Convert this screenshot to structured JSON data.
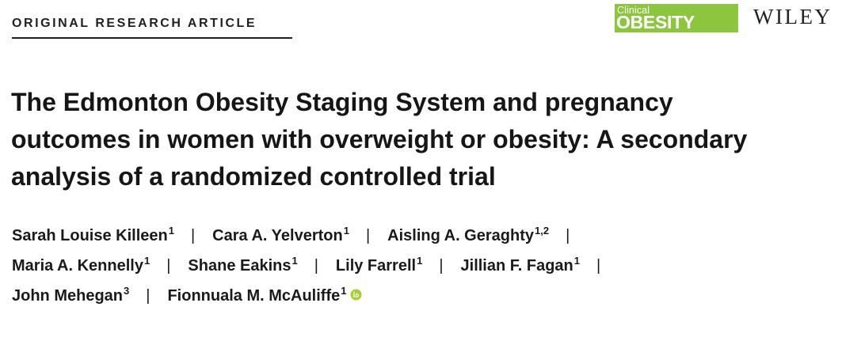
{
  "header": {
    "article_type": "ORIGINAL RESEARCH ARTICLE",
    "journal_logo": {
      "line1": "Clinical",
      "line2": "OBESITY",
      "color": "#8cc63f"
    },
    "publisher": "WILEY"
  },
  "title_lines": [
    "The Edmonton Obesity Staging System and pregnancy",
    "outcomes in women with overweight or obesity: A secondary",
    "analysis of a randomized controlled trial"
  ],
  "separator": "|",
  "authors": [
    {
      "name": "Sarah Louise Killeen",
      "affiliation": "1"
    },
    {
      "name": "Cara A. Yelverton",
      "affiliation": "1"
    },
    {
      "name": "Aisling A. Geraghty",
      "affiliation": "1,2"
    },
    {
      "name": "Maria A. Kennelly",
      "affiliation": "1"
    },
    {
      "name": "Shane Eakins",
      "affiliation": "1"
    },
    {
      "name": "Lily Farrell",
      "affiliation": "1"
    },
    {
      "name": "Jillian F. Fagan",
      "affiliation": "1"
    },
    {
      "name": "John Mehegan",
      "affiliation": "3"
    },
    {
      "name": "Fionnuala M. McAuliffe",
      "affiliation": "1",
      "icon": "orcid-icon"
    }
  ]
}
